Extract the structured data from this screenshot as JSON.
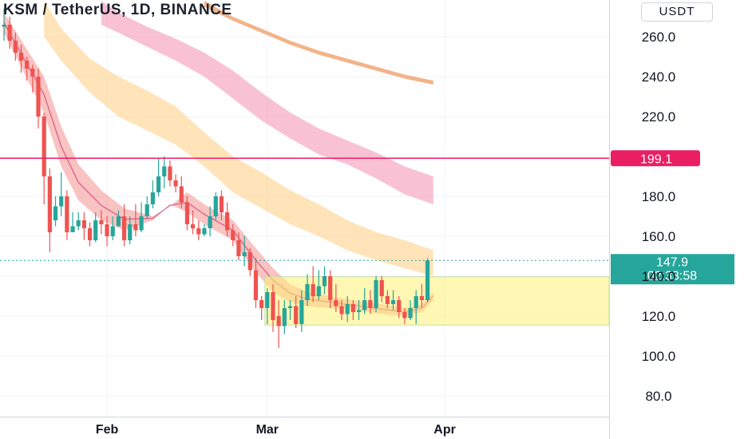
{
  "header": {
    "title": "KSM / TetherUS, 1D, BINANCE",
    "currency": "USDT"
  },
  "chart_data": {
    "type": "candlestick",
    "x_labels": [
      {
        "label": "Feb",
        "index": 18
      },
      {
        "label": "Mar",
        "index": 46
      },
      {
        "label": "Apr",
        "index": 77
      }
    ],
    "y_ticks": [
      80,
      100,
      120,
      140,
      160,
      180,
      200,
      220,
      240,
      260
    ],
    "y_tick_labels": [
      "80.0",
      "100.0",
      "120.0",
      "140.0",
      "160.0",
      "180.0",
      "",
      "220.0",
      "240.0",
      "260.0"
    ],
    "ylim": [
      72,
      278
    ],
    "candles": [
      [
        265,
        266,
        274,
        258
      ],
      [
        266,
        258,
        270,
        254
      ],
      [
        258,
        252,
        262,
        248
      ],
      [
        252,
        248,
        256,
        242
      ],
      [
        248,
        244,
        250,
        238
      ],
      [
        244,
        240,
        246,
        232
      ],
      [
        240,
        220,
        244,
        214
      ],
      [
        220,
        190,
        222,
        176
      ],
      [
        190,
        162,
        194,
        152
      ],
      [
        168,
        175,
        180,
        165
      ],
      [
        175,
        180,
        192,
        170
      ],
      [
        180,
        162,
        183,
        158
      ],
      [
        162,
        165,
        172,
        162
      ],
      [
        165,
        168,
        172,
        163
      ],
      [
        168,
        164,
        172,
        158
      ],
      [
        164,
        158,
        167,
        155
      ],
      [
        158,
        168,
        172,
        157
      ],
      [
        168,
        166,
        173,
        161
      ],
      [
        166,
        160,
        170,
        155
      ],
      [
        160,
        165,
        170,
        158
      ],
      [
        165,
        170,
        173,
        166
      ],
      [
        170,
        158,
        176,
        155
      ],
      [
        158,
        166,
        170,
        156
      ],
      [
        166,
        163,
        176,
        160
      ],
      [
        163,
        170,
        177,
        162
      ],
      [
        170,
        176,
        180,
        169
      ],
      [
        176,
        182,
        188,
        174
      ],
      [
        182,
        190,
        199,
        180
      ],
      [
        190,
        195,
        200,
        184
      ],
      [
        195,
        188,
        198,
        185
      ],
      [
        188,
        185,
        191,
        182
      ],
      [
        185,
        177,
        190,
        174
      ],
      [
        177,
        166,
        180,
        163
      ],
      [
        166,
        164,
        173,
        161
      ],
      [
        164,
        161,
        168,
        158
      ],
      [
        161,
        164,
        166,
        160
      ],
      [
        164,
        170,
        175,
        160
      ],
      [
        170,
        180,
        182,
        168
      ],
      [
        180,
        172,
        183,
        168
      ],
      [
        172,
        163,
        177,
        160
      ],
      [
        163,
        158,
        166,
        155
      ],
      [
        158,
        150,
        162,
        148
      ],
      [
        150,
        152,
        160,
        145
      ],
      [
        152,
        143,
        154,
        140
      ],
      [
        143,
        128,
        149,
        124
      ],
      [
        128,
        124,
        130,
        118
      ],
      [
        124,
        132,
        134,
        116
      ],
      [
        132,
        118,
        136,
        112
      ],
      [
        120,
        115,
        128,
        104
      ],
      [
        115,
        124,
        128,
        111
      ],
      [
        124,
        125,
        128,
        118
      ],
      [
        125,
        116,
        130,
        114
      ],
      [
        116,
        128,
        133,
        112
      ],
      [
        128,
        136,
        141,
        125
      ],
      [
        136,
        130,
        145,
        127
      ],
      [
        130,
        135,
        143,
        128
      ],
      [
        135,
        140,
        145,
        131
      ],
      [
        140,
        128,
        143,
        124
      ],
      [
        128,
        125,
        136,
        122
      ],
      [
        125,
        121,
        128,
        118
      ],
      [
        121,
        126,
        130,
        117
      ],
      [
        126,
        122,
        128,
        118
      ],
      [
        122,
        123,
        128,
        118
      ],
      [
        123,
        128,
        134,
        121
      ],
      [
        128,
        124,
        133,
        121
      ],
      [
        124,
        138,
        140,
        122
      ],
      [
        138,
        130,
        140,
        127
      ],
      [
        130,
        126,
        133,
        124
      ],
      [
        126,
        128,
        133,
        123
      ],
      [
        128,
        122,
        130,
        119
      ],
      [
        122,
        119,
        124,
        116
      ],
      [
        119,
        124,
        128,
        118
      ],
      [
        124,
        130,
        133,
        116
      ],
      [
        130,
        128,
        136,
        124
      ],
      [
        128,
        147.9,
        149,
        127
      ]
    ],
    "bands": [
      {
        "name": "",
        "color": "#ef5350",
        "opacity": 0.35,
        "upper": [
          [
            0,
            272
          ],
          [
            7,
            240
          ],
          [
            10,
            215
          ],
          [
            13,
            196
          ],
          [
            17,
            183
          ],
          [
            21,
            174
          ],
          [
            26,
            170
          ],
          [
            29,
            175
          ],
          [
            32,
            182
          ],
          [
            35,
            176
          ],
          [
            40,
            168
          ],
          [
            44,
            154
          ],
          [
            47,
            144
          ],
          [
            50,
            136
          ],
          [
            53,
            132
          ],
          [
            57,
            130
          ],
          [
            61,
            128
          ],
          [
            66,
            126
          ],
          [
            70,
            124
          ],
          [
            73,
            126
          ],
          [
            75,
            132
          ]
        ],
        "lower": [
          [
            75,
            128
          ],
          [
            73,
            122
          ],
          [
            70,
            120
          ],
          [
            66,
            121
          ],
          [
            61,
            123
          ],
          [
            57,
            124
          ],
          [
            53,
            125
          ],
          [
            50,
            127
          ],
          [
            47,
            132
          ],
          [
            44,
            142
          ],
          [
            40,
            158
          ],
          [
            35,
            166
          ],
          [
            32,
            172
          ],
          [
            29,
            176
          ],
          [
            26,
            168
          ],
          [
            21,
            163
          ],
          [
            17,
            168
          ],
          [
            13,
            178
          ],
          [
            10,
            195
          ],
          [
            7,
            222
          ],
          [
            0,
            262
          ]
        ]
      },
      {
        "name": "",
        "color": "#ffcc80",
        "opacity": 0.55,
        "upper": [
          [
            7,
            278
          ],
          [
            10,
            264
          ],
          [
            15,
            249
          ],
          [
            20,
            240
          ],
          [
            25,
            233
          ],
          [
            30,
            225
          ],
          [
            35,
            212
          ],
          [
            40,
            200
          ],
          [
            45,
            192
          ],
          [
            50,
            183
          ],
          [
            55,
            176
          ],
          [
            60,
            168
          ],
          [
            65,
            162
          ],
          [
            70,
            158
          ],
          [
            75,
            153
          ]
        ],
        "lower": [
          [
            75,
            140
          ],
          [
            70,
            144
          ],
          [
            65,
            148
          ],
          [
            60,
            153
          ],
          [
            55,
            160
          ],
          [
            50,
            166
          ],
          [
            45,
            174
          ],
          [
            40,
            182
          ],
          [
            35,
            195
          ],
          [
            30,
            206
          ],
          [
            25,
            213
          ],
          [
            20,
            220
          ],
          [
            15,
            232
          ],
          [
            10,
            248
          ],
          [
            7,
            260
          ]
        ]
      },
      {
        "name": "",
        "color": "#f48fb1",
        "opacity": 0.55,
        "upper": [
          [
            17,
            278
          ],
          [
            20,
            272
          ],
          [
            25,
            265
          ],
          [
            30,
            259
          ],
          [
            35,
            252
          ],
          [
            40,
            243
          ],
          [
            45,
            232
          ],
          [
            50,
            222
          ],
          [
            55,
            214
          ],
          [
            60,
            208
          ],
          [
            65,
            202
          ],
          [
            70,
            195
          ],
          [
            75,
            190
          ]
        ],
        "lower": [
          [
            75,
            176
          ],
          [
            70,
            181
          ],
          [
            65,
            189
          ],
          [
            60,
            196
          ],
          [
            55,
            201
          ],
          [
            50,
            209
          ],
          [
            45,
            218
          ],
          [
            40,
            229
          ],
          [
            35,
            240
          ],
          [
            30,
            248
          ],
          [
            25,
            255
          ],
          [
            20,
            262
          ],
          [
            17,
            266
          ]
        ]
      },
      {
        "name": "",
        "color": "#ef9a60",
        "opacity": 0.75,
        "upper": [
          [
            35,
            278
          ],
          [
            40,
            270
          ],
          [
            45,
            264
          ],
          [
            50,
            258
          ],
          [
            55,
            253
          ],
          [
            60,
            249
          ],
          [
            65,
            245
          ],
          [
            70,
            241
          ],
          [
            75,
            238
          ]
        ],
        "lower": [
          [
            75,
            236
          ],
          [
            70,
            239
          ],
          [
            65,
            243
          ],
          [
            60,
            247
          ],
          [
            55,
            251
          ],
          [
            50,
            256
          ],
          [
            45,
            262
          ],
          [
            40,
            268
          ],
          [
            35,
            275
          ]
        ]
      }
    ],
    "support_zone": {
      "start_index": 46,
      "price_top": 139.7,
      "price_bottom": 115.5,
      "color": "#fff176"
    },
    "resistance_line": {
      "price": 199.1,
      "label": "199.1",
      "color": "#e91e63"
    },
    "last_price": {
      "price": 147.9,
      "label": "147.9",
      "countdown": "02:33:58",
      "color": "#26a69a"
    },
    "colors": {
      "up": "#26a69a",
      "down": "#ef5350"
    }
  }
}
